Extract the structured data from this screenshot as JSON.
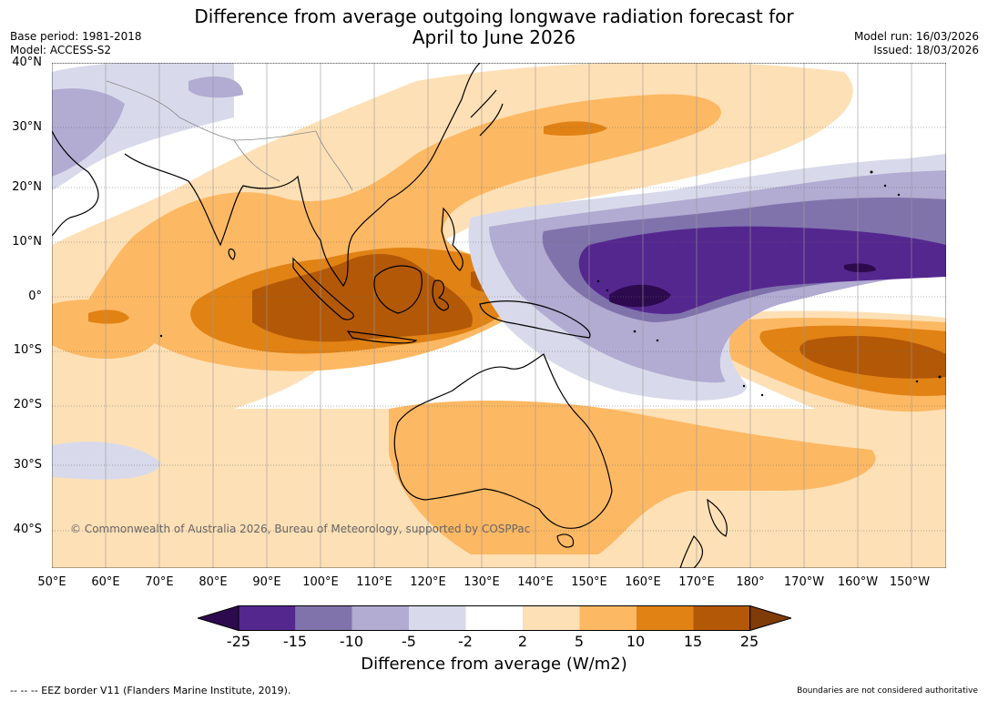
{
  "title_line1": "Difference from average outgoing longwave radiation forecast for",
  "title_line2": "April to June 2026",
  "base_period": "Base period: 1981-2018",
  "model": "Model: ACCESS-S2",
  "model_run": "Model run: 16/03/2026",
  "issued": "Issued: 18/03/2026",
  "copyright": "© Commonwealth of Australia 2026, Bureau of Meteorology, supported by COSPPac",
  "lat_labels": [
    "40°N",
    "30°N",
    "20°N",
    "10°N",
    "0°",
    "10°S",
    "20°S",
    "30°S",
    "40°S"
  ],
  "lon_labels": [
    "50°E",
    "60°E",
    "70°E",
    "80°E",
    "90°E",
    "100°E",
    "110°E",
    "120°E",
    "130°E",
    "140°E",
    "150°E",
    "160°E",
    "170°E",
    "180°",
    "170°W",
    "160°W",
    "150°W"
  ],
  "colorbar": {
    "ticks": [
      "-25",
      "-15",
      "-10",
      "-5",
      "-2",
      "2",
      "5",
      "10",
      "15",
      "25"
    ],
    "colors": [
      "#2d0a4e",
      "#54278f",
      "#8073ac",
      "#b2abd2",
      "#d8daeb",
      "#ffffff",
      "#fee0b6",
      "#fdb863",
      "#e08214",
      "#b35806",
      "#7f3b08"
    ],
    "title": "Difference from average (W/m2)"
  },
  "legend_eez": "-- -- -- EEZ border V11 (Flanders Marine Institute, 2019).",
  "boundaries_note": "Boundaries are not considered authoritative"
}
